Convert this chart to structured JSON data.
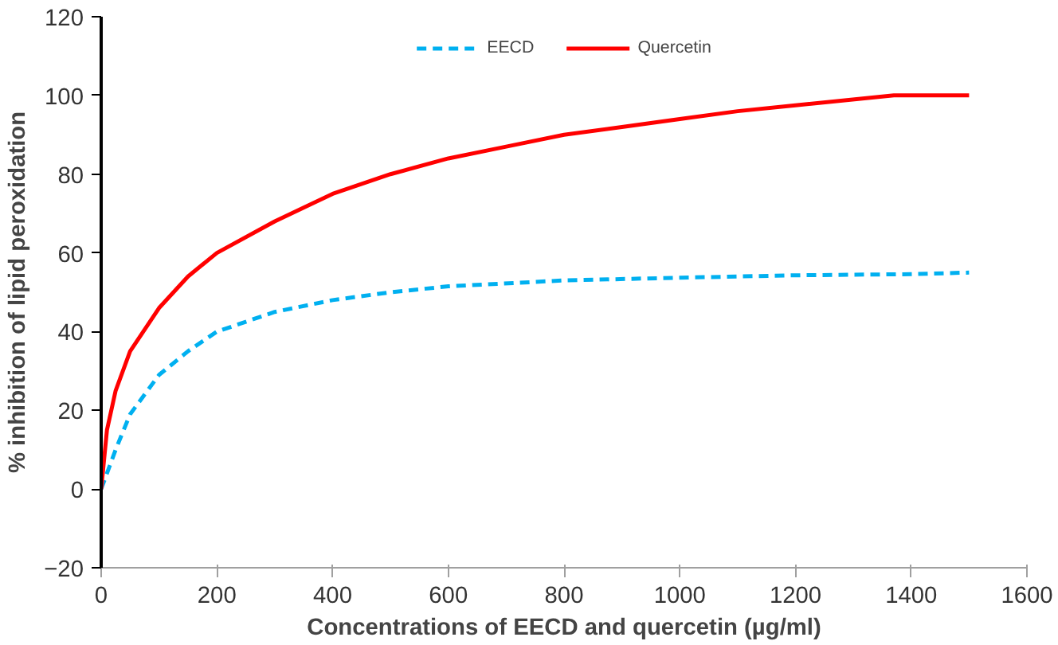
{
  "chart_data": {
    "type": "line",
    "xlabel": "Concentrations of EECD and quercetin (µg/ml)",
    "ylabel": "% inhibition of lipid peroxidation",
    "xlim": [
      0,
      1600
    ],
    "xticks": [
      0,
      200,
      400,
      600,
      800,
      1000,
      1200,
      1400,
      1600
    ],
    "ylim": [
      -20,
      120
    ],
    "yticks": [
      -20,
      0,
      20,
      40,
      60,
      80,
      100,
      120
    ],
    "grid": false,
    "legend": "top",
    "marker": "none",
    "series": [
      {
        "name": "EECD",
        "color": "#00b0f0",
        "line_style": "dashed",
        "x": [
          0,
          25,
          50,
          100,
          150,
          200,
          300,
          400,
          500,
          600,
          800,
          1000,
          1200,
          1400,
          1500
        ],
        "values": [
          0,
          10,
          19,
          29,
          35,
          40,
          45,
          48,
          50,
          51.5,
          53,
          53.7,
          54.3,
          54.6,
          55
        ]
      },
      {
        "name": "Quercetin",
        "color": "#ff0000",
        "line_style": "solid",
        "x": [
          0,
          10,
          25,
          50,
          100,
          150,
          200,
          300,
          400,
          500,
          600,
          700,
          800,
          900,
          1000,
          1100,
          1200,
          1370,
          1500
        ],
        "values": [
          0,
          15,
          25,
          35,
          46,
          54,
          60,
          68,
          75,
          80,
          84,
          87,
          90,
          92,
          94,
          96,
          97.5,
          100,
          100
        ]
      }
    ]
  }
}
